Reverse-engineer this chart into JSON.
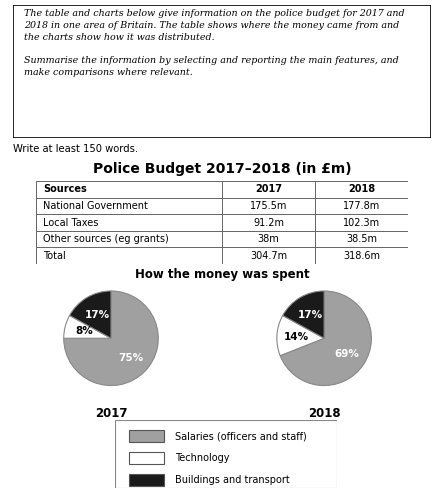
{
  "write_text": "Write at least 150 words.",
  "table_title": "Police Budget 2017–2018 (in £m)",
  "table_headers": [
    "Sources",
    "2017",
    "2018"
  ],
  "table_rows": [
    [
      "National Government",
      "175.5m",
      "177.8m"
    ],
    [
      "Local Taxes",
      "91.2m",
      "102.3m"
    ],
    [
      "Other sources (eg grants)",
      "38m",
      "38.5m"
    ],
    [
      "Total",
      "304.7m",
      "318.6m"
    ]
  ],
  "pie_title": "How the money was spent",
  "pie_2017": [
    75,
    8,
    17
  ],
  "pie_2018": [
    69,
    14,
    17
  ],
  "pie_labels_2017": [
    "75%",
    "8%",
    "17%"
  ],
  "pie_labels_2018": [
    "69%",
    "14%",
    "17%"
  ],
  "pie_colors": [
    "#a0a0a0",
    "#ffffff",
    "#1a1a1a"
  ],
  "year_2017": "2017",
  "year_2018": "2018",
  "legend_labels": [
    "Salaries (officers and staff)",
    "Technology",
    "Buildings and transport"
  ],
  "legend_colors": [
    "#a0a0a0",
    "#ffffff",
    "#1a1a1a"
  ],
  "box_text_line1": "The table and charts below give information on the police budget for 2017 and",
  "box_text_line2": "2018 in one area of Britain. The table shows where the money came from and",
  "box_text_line3": "the charts show how it was distributed.",
  "box_text_line4": "",
  "box_text_line5": "Summarise the information by selecting and reporting the main features, and",
  "box_text_line6": "make comparisons where relevant."
}
